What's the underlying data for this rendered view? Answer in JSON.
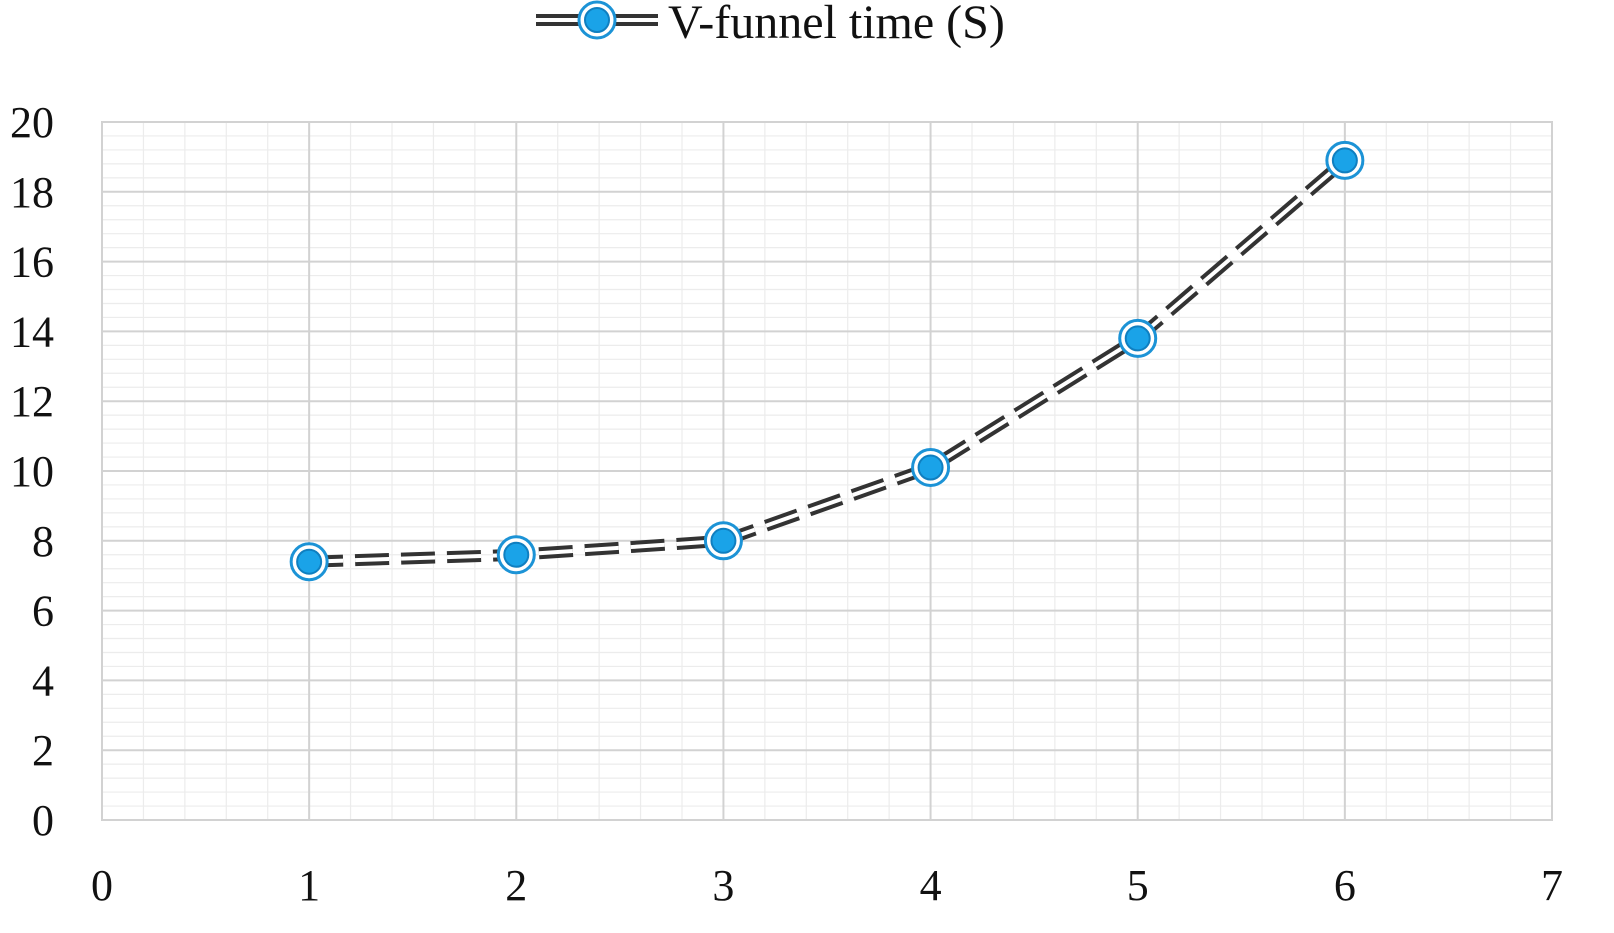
{
  "chart_data": {
    "type": "scatter",
    "title": "",
    "xlabel": "",
    "ylabel": "",
    "xlim": [
      0,
      7
    ],
    "ylim": [
      0,
      20
    ],
    "x_ticks": [
      "0",
      "1",
      "2",
      "3",
      "4",
      "5",
      "6",
      "7"
    ],
    "y_ticks": [
      "0",
      "2",
      "4",
      "6",
      "8",
      "10",
      "12",
      "14",
      "16",
      "18",
      "20"
    ],
    "grid": true,
    "minor_grid": true,
    "legend": {
      "position": "top",
      "entries": [
        "V-funnel time (S)"
      ]
    },
    "series": [
      {
        "name": "V-funnel time (S)",
        "line_style": "double-dashed",
        "line_color": "#333333",
        "marker_color": "#1aa3e8",
        "x": [
          1,
          2,
          3,
          4,
          5,
          6
        ],
        "y": [
          7.4,
          7.6,
          8.0,
          10.1,
          13.8,
          18.9
        ]
      }
    ]
  }
}
